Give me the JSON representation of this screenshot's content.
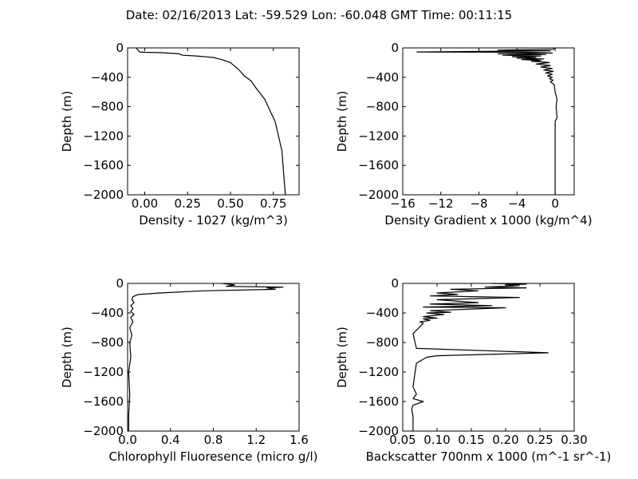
{
  "figure_title": "Date: 02/16/2013  Lat:  -59.529 Lon:  -60.048  GMT Time: 00:11:15",
  "chart_data": [
    {
      "type": "line",
      "xlabel": "Density - 1027 (kg/m^3)",
      "ylabel": "Depth (m)",
      "xlim": [
        -0.1,
        0.9
      ],
      "ylim": [
        -2000,
        0
      ],
      "xticks": [
        0.0,
        0.25,
        0.5,
        0.75
      ],
      "xtick_labels": [
        "0.00",
        "0.25",
        "0.50",
        "0.75"
      ],
      "yticks": [
        0,
        -400,
        -800,
        -1200,
        -1600,
        -2000
      ],
      "ytick_labels": [
        "0",
        "−400",
        "−800",
        "−1200",
        "−1600",
        "−2000"
      ],
      "x": [
        -0.05,
        -0.04,
        -0.03,
        0.0,
        0.1,
        0.2,
        0.22,
        0.3,
        0.4,
        0.45,
        0.5,
        0.55,
        0.58,
        0.62,
        0.65,
        0.7,
        0.73,
        0.76,
        0.78,
        0.8,
        0.81,
        0.82
      ],
      "y": [
        0,
        -30,
        -55,
        -60,
        -65,
        -80,
        -100,
        -110,
        -130,
        -160,
        -200,
        -300,
        -380,
        -450,
        -550,
        -700,
        -850,
        -1000,
        -1200,
        -1400,
        -1700,
        -2000
      ]
    },
    {
      "type": "line",
      "xlabel": "Density Gradient x 1000 (kg/m^4)",
      "ylabel": "Depth (m)",
      "xlim": [
        -16,
        2
      ],
      "ylim": [
        -2000,
        0
      ],
      "xticks": [
        -16,
        -12,
        -8,
        -4,
        0
      ],
      "xtick_labels": [
        "−16",
        "−12",
        "−8",
        "−4",
        "0"
      ],
      "yticks": [
        0,
        -400,
        -800,
        -1200,
        -1600,
        -2000
      ],
      "ytick_labels": [
        "0",
        "−400",
        "−800",
        "−1200",
        "−1600",
        "−2000"
      ],
      "x": [
        0,
        -0.2,
        -6,
        -0.5,
        -14.5,
        -3,
        -0.3,
        -6,
        -1,
        -5.5,
        -1.5,
        -4.5,
        -2,
        -4,
        -1.2,
        -3.5,
        -1.5,
        -2.5,
        -0.6,
        -2,
        -0.5,
        -1.5,
        -0.3,
        -1.2,
        -0.2,
        -1,
        -0.3,
        -0.8,
        -0.3,
        -0.6,
        -0.2,
        -0.5,
        -0.1,
        0,
        0.2,
        0.1,
        0.2,
        0,
        0,
        0
      ],
      "y": [
        0,
        -20,
        -30,
        -40,
        -55,
        -60,
        -70,
        -80,
        -90,
        -100,
        -110,
        -120,
        -130,
        -140,
        -150,
        -160,
        -170,
        -180,
        -200,
        -220,
        -240,
        -260,
        -280,
        -300,
        -320,
        -340,
        -360,
        -380,
        -400,
        -420,
        -440,
        -460,
        -500,
        -600,
        -700,
        -800,
        -950,
        -1000,
        -1500,
        -2000
      ]
    },
    {
      "type": "line",
      "xlabel": "Chlorophyll Fluoresence (micro g/l)",
      "ylabel": "Depth (m)",
      "xlim": [
        0.0,
        1.6
      ],
      "ylim": [
        -2000,
        0
      ],
      "xticks": [
        0.0,
        0.4,
        0.8,
        1.2,
        1.6
      ],
      "xtick_labels": [
        "0.0",
        "0.4",
        "0.8",
        "1.2",
        "1.6"
      ],
      "yticks": [
        0,
        -400,
        -800,
        -1200,
        -1600,
        -2000
      ],
      "ytick_labels": [
        "0",
        "−400",
        "−800",
        "−1200",
        "−1600",
        "−2000"
      ],
      "x": [
        0.88,
        1.0,
        0.92,
        1.45,
        1.3,
        1.38,
        0.7,
        0.3,
        0.1,
        0.05,
        0.04,
        0.06,
        0.03,
        0.05,
        0.03,
        0.06,
        0.03,
        0.05,
        0.02,
        0.04,
        0.02,
        0.03,
        0.01,
        0.02,
        0.01,
        0.01
      ],
      "y": [
        0,
        -20,
        -40,
        -50,
        -60,
        -80,
        -100,
        -130,
        -150,
        -180,
        -220,
        -260,
        -300,
        -340,
        -380,
        -420,
        -460,
        -520,
        -600,
        -700,
        -800,
        -1000,
        -1200,
        -1500,
        -1800,
        -2000
      ]
    },
    {
      "type": "line",
      "xlabel": "Backscatter 700nm x 1000 (m^-1 sr^-1)",
      "ylabel": "Depth (m)",
      "xlim": [
        0.05,
        0.3
      ],
      "ylim": [
        -2000,
        0
      ],
      "xticks": [
        0.05,
        0.1,
        0.15,
        0.2,
        0.25,
        0.3
      ],
      "xtick_labels": [
        "0.05",
        "0.10",
        "0.15",
        "0.20",
        "0.25",
        "0.30"
      ],
      "yticks": [
        0,
        -400,
        -800,
        -1200,
        -1600,
        -2000
      ],
      "ytick_labels": [
        "0",
        "−400",
        "−800",
        "−1200",
        "−1600",
        "−2000"
      ],
      "x": [
        0.18,
        0.23,
        0.2,
        0.22,
        0.17,
        0.23,
        0.12,
        0.16,
        0.1,
        0.13,
        0.09,
        0.22,
        0.1,
        0.16,
        0.09,
        0.18,
        0.08,
        0.2,
        0.09,
        0.12,
        0.085,
        0.11,
        0.08,
        0.1,
        0.08,
        0.09,
        0.075,
        0.08,
        0.065,
        0.07,
        0.262,
        0.1,
        0.085,
        0.07,
        0.068,
        0.065,
        0.07,
        0.065,
        0.08,
        0.065,
        0.063,
        0.065,
        0.065
      ],
      "y": [
        0,
        -10,
        -20,
        -30,
        -50,
        -60,
        -80,
        -100,
        -130,
        -150,
        -170,
        -190,
        -220,
        -260,
        -280,
        -300,
        -320,
        -330,
        -370,
        -390,
        -400,
        -420,
        -450,
        -470,
        -480,
        -500,
        -520,
        -540,
        -680,
        -880,
        -940,
        -980,
        -1000,
        -1080,
        -1200,
        -1400,
        -1500,
        -1560,
        -1600,
        -1650,
        -1700,
        -1800,
        -2000
      ]
    }
  ]
}
